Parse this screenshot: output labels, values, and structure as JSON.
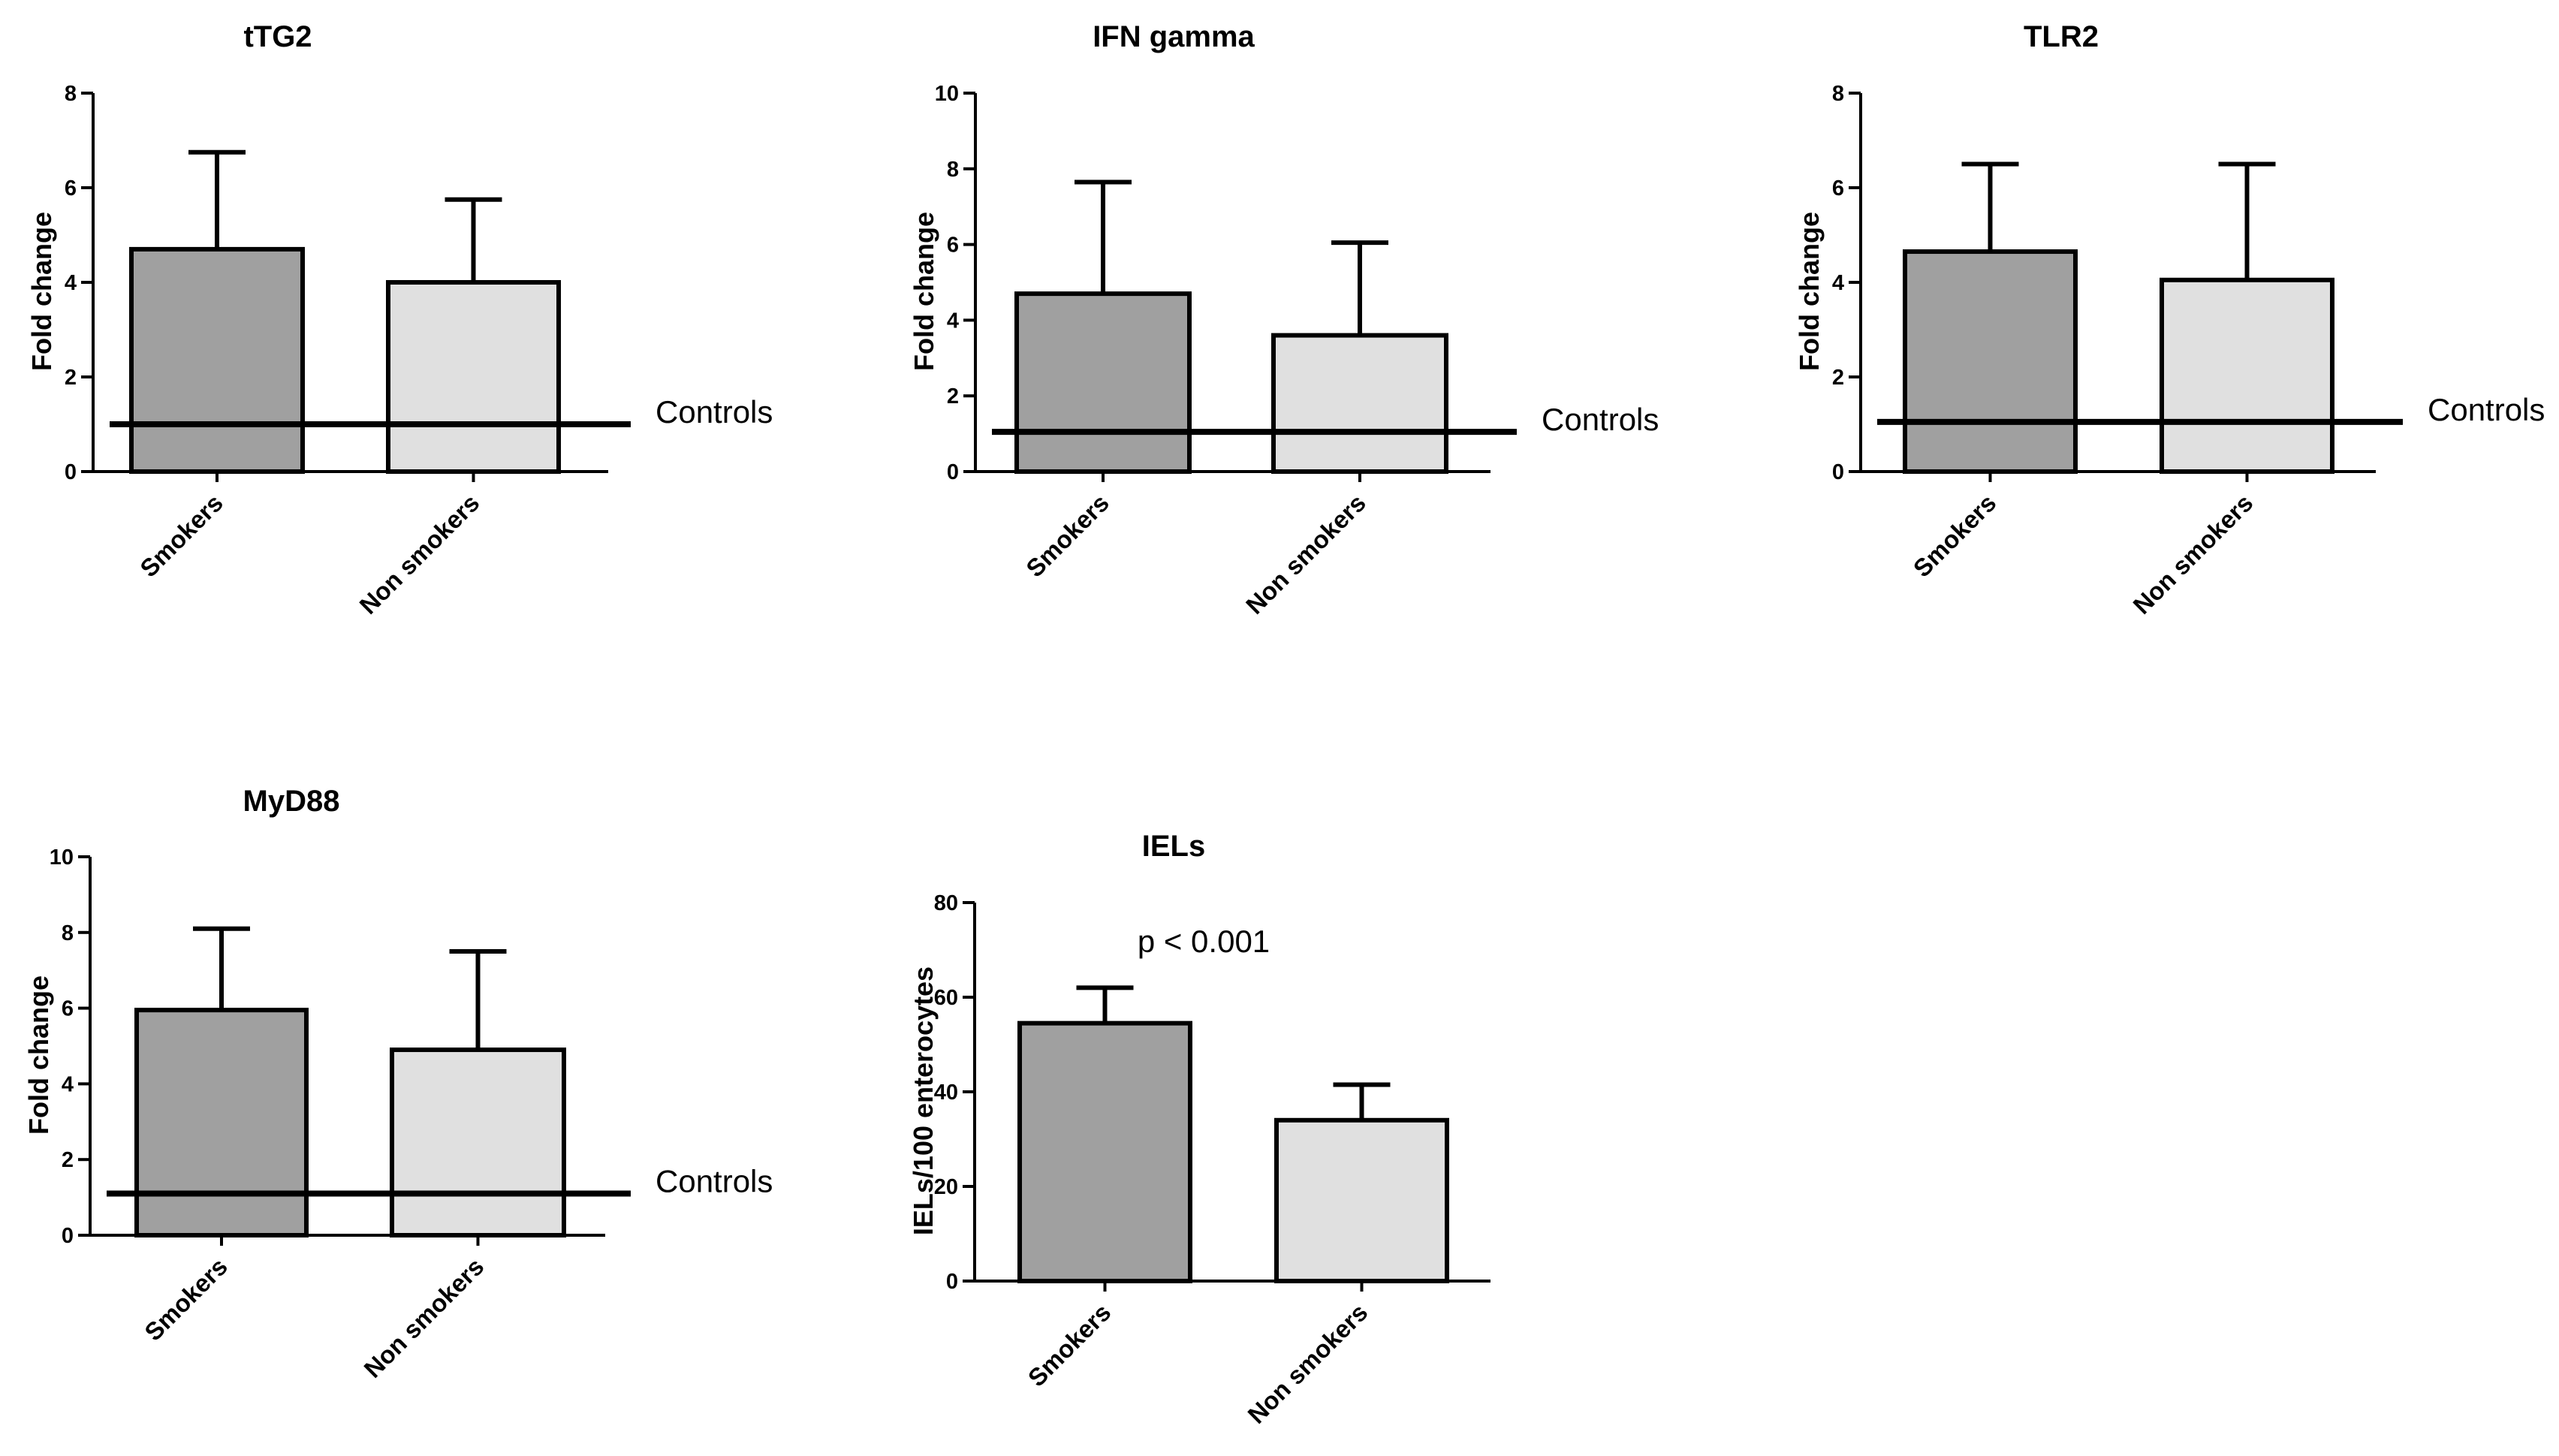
{
  "chart_data": [
    {
      "type": "bar",
      "title": "tTG2",
      "ylabel": "Fold change",
      "xlabel": "",
      "ylim": [
        0,
        8
      ],
      "yticks": [
        0,
        2,
        4,
        6,
        8
      ],
      "categories": [
        "Smokers",
        "Non smokers"
      ],
      "values": [
        4.7,
        4.0
      ],
      "error_upper": [
        6.75,
        5.75
      ],
      "bar_colors": [
        "#a0a0a0",
        "#e0e0e0"
      ],
      "reference_line": {
        "value": 1.0,
        "label": "Controls"
      }
    },
    {
      "type": "bar",
      "title": "IFN gamma",
      "ylabel": "Fold change",
      "xlabel": "",
      "ylim": [
        0,
        10
      ],
      "yticks": [
        0,
        2,
        4,
        6,
        8,
        10
      ],
      "categories": [
        "Smokers",
        "Non smokers"
      ],
      "values": [
        4.7,
        3.6
      ],
      "error_upper": [
        7.65,
        6.05
      ],
      "bar_colors": [
        "#a0a0a0",
        "#e0e0e0"
      ],
      "reference_line": {
        "value": 1.05,
        "label": "Controls"
      }
    },
    {
      "type": "bar",
      "title": "TLR2",
      "ylabel": "Fold change",
      "xlabel": "",
      "ylim": [
        0,
        8
      ],
      "yticks": [
        0,
        2,
        4,
        6,
        8
      ],
      "categories": [
        "Smokers",
        "Non smokers"
      ],
      "values": [
        4.65,
        4.05
      ],
      "error_upper": [
        6.5,
        6.5
      ],
      "bar_colors": [
        "#a0a0a0",
        "#e0e0e0"
      ],
      "reference_line": {
        "value": 1.05,
        "label": "Controls"
      }
    },
    {
      "type": "bar",
      "title": "MyD88",
      "ylabel": "Fold change",
      "xlabel": "",
      "ylim": [
        0,
        10
      ],
      "yticks": [
        0,
        2,
        4,
        6,
        8,
        10
      ],
      "categories": [
        "Smokers",
        "Non smokers"
      ],
      "values": [
        5.95,
        4.9
      ],
      "error_upper": [
        8.1,
        7.5
      ],
      "bar_colors": [
        "#a0a0a0",
        "#e0e0e0"
      ],
      "reference_line": {
        "value": 1.1,
        "label": "Controls"
      }
    },
    {
      "type": "bar",
      "title": "IELs",
      "ylabel": "IELs/100 enterocytes",
      "xlabel": "",
      "ylim": [
        0,
        80
      ],
      "yticks": [
        0,
        20,
        40,
        60,
        80
      ],
      "categories": [
        "Smokers",
        "Non smokers"
      ],
      "values": [
        54.5,
        34
      ],
      "error_upper": [
        62,
        41.5
      ],
      "bar_colors": [
        "#a0a0a0",
        "#e0e0e0"
      ],
      "annotation": "p < 0.001"
    }
  ]
}
